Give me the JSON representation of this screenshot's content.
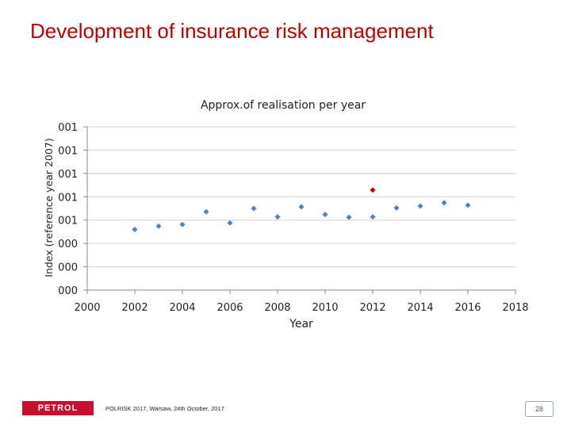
{
  "header": {
    "title": "Development of insurance risk management"
  },
  "chart_data": {
    "type": "scatter",
    "title": "Approx.of realisation per year",
    "x_label": "Year",
    "y_label": "Index (reference year 2007)",
    "xlim": [
      2000,
      2018
    ],
    "xticks": [
      2000,
      2002,
      2004,
      2006,
      2008,
      2010,
      2012,
      2014,
      2016,
      2018
    ],
    "ylim": [
      0.2,
      0.9
    ],
    "yticks": [
      {
        "value": 0.2,
        "label": "000"
      },
      {
        "value": 0.3,
        "label": "000"
      },
      {
        "value": 0.4,
        "label": "000"
      },
      {
        "value": 0.5,
        "label": "001"
      },
      {
        "value": 0.6,
        "label": "001"
      },
      {
        "value": 0.7,
        "label": "001"
      },
      {
        "value": 0.8,
        "label": "001"
      },
      {
        "value": 0.9,
        "label": "001"
      }
    ],
    "grid": true,
    "series": [
      {
        "color": "#4f81bd",
        "x": [
          2002,
          2003,
          2004,
          2005,
          2006,
          2007,
          2008,
          2009,
          2010,
          2011,
          2012,
          2013,
          2014,
          2015,
          2016
        ],
        "values": [
          0.46,
          0.474,
          0.481,
          0.536,
          0.488,
          0.55,
          0.514,
          0.557,
          0.524,
          0.512,
          0.514,
          0.552,
          0.56,
          0.574,
          0.564
        ]
      },
      {
        "color": "#c00000",
        "x": [
          2012
        ],
        "values": [
          0.629
        ]
      }
    ]
  },
  "footer": {
    "text": "POLRISK 2017, Warsaw, 24th October, 2017",
    "logo": "PETROL",
    "page": "28"
  }
}
